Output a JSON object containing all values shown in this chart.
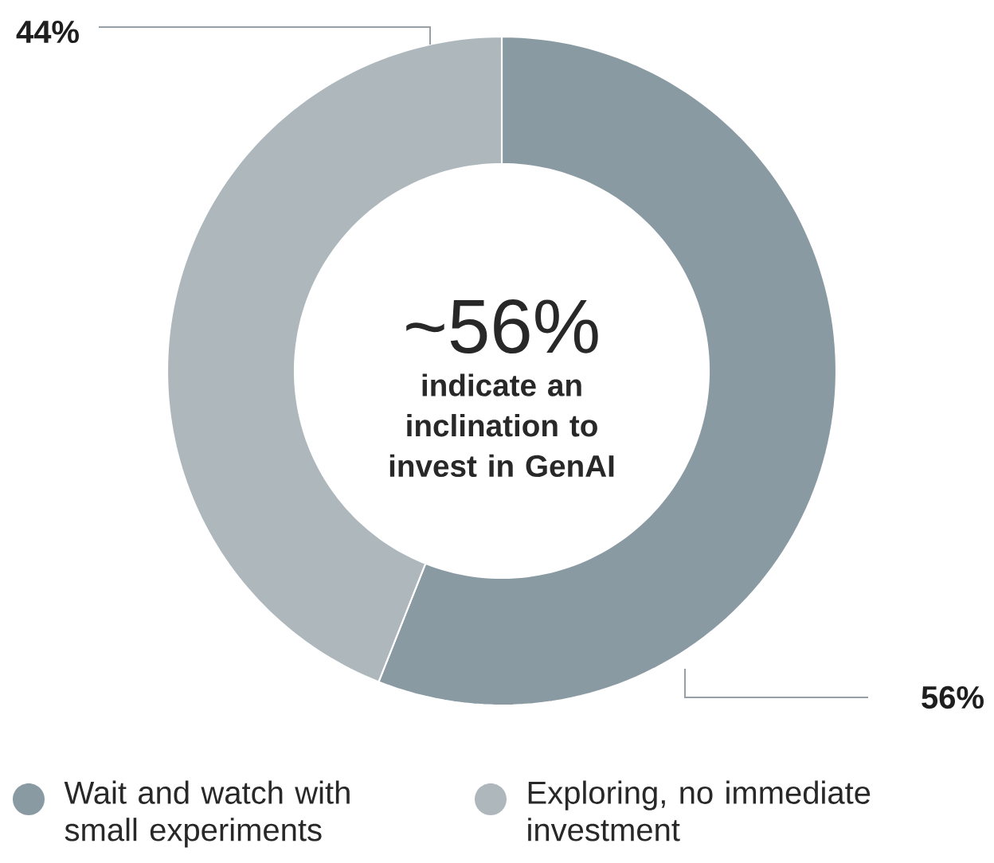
{
  "chart_data": {
    "type": "donut",
    "categories": [
      "Wait and watch with small experiments",
      "Exploring, no immediate investment"
    ],
    "values": [
      56,
      44
    ],
    "colors": [
      "#8a9aa3",
      "#adb7bc"
    ],
    "value_labels": [
      "56%",
      "44%"
    ],
    "annotations": [
      "~56%",
      "indicate an inclination to invest in GenAI"
    ],
    "legend": "bottom"
  }
}
